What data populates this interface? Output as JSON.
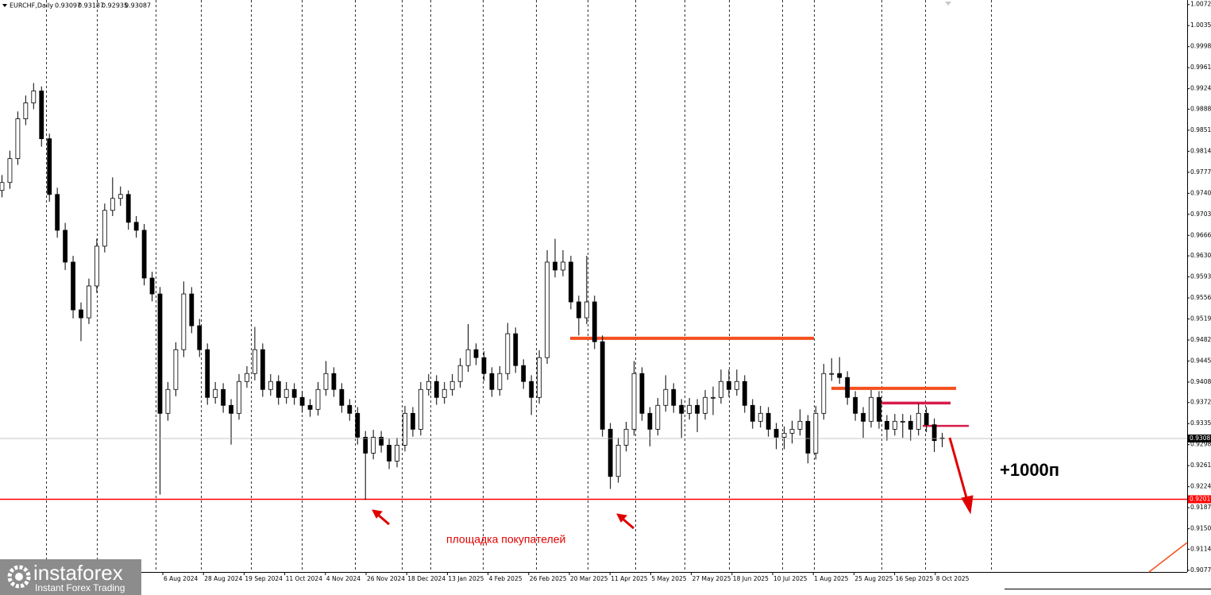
{
  "chart_data": {
    "type": "candlestick",
    "symbol": "EURCHF,Daily",
    "up_color": "#ffffff",
    "down_color": "#000000",
    "ylim": [
      0.9074,
      1.008
    ],
    "yticks": [
      {
        "value": 1.0072,
        "label": "1.00720"
      },
      {
        "value": 1.0035,
        "label": "1.00350"
      },
      {
        "value": 0.9998,
        "label": "0.99980"
      },
      {
        "value": 0.9961,
        "label": "0.99610"
      },
      {
        "value": 0.9924,
        "label": "0.99240"
      },
      {
        "value": 0.9888,
        "label": "0.98880"
      },
      {
        "value": 0.9851,
        "label": "0.98510"
      },
      {
        "value": 0.9814,
        "label": "0.98140"
      },
      {
        "value": 0.9777,
        "label": "0.97770"
      },
      {
        "value": 0.974,
        "label": "0.97400"
      },
      {
        "value": 0.9703,
        "label": "0.97030"
      },
      {
        "value": 0.9666,
        "label": "0.96660"
      },
      {
        "value": 0.963,
        "label": "0.96300"
      },
      {
        "value": 0.9593,
        "label": "0.95930"
      },
      {
        "value": 0.9556,
        "label": "0.95560"
      },
      {
        "value": 0.9519,
        "label": "0.95190"
      },
      {
        "value": 0.9482,
        "label": "0.94820"
      },
      {
        "value": 0.9445,
        "label": "0.94450"
      },
      {
        "value": 0.9408,
        "label": "0.94080"
      },
      {
        "value": 0.9372,
        "label": "0.93720"
      },
      {
        "value": 0.9335,
        "label": "0.93350"
      },
      {
        "value": 0.9298,
        "label": "0.92980"
      },
      {
        "value": 0.9261,
        "label": "0.92610"
      },
      {
        "value": 0.9224,
        "label": "0.92240"
      },
      {
        "value": 0.9187,
        "label": "0.91870"
      },
      {
        "value": 0.915,
        "label": "0.91500"
      },
      {
        "value": 0.9114,
        "label": "0.91140"
      },
      {
        "value": 0.9077,
        "label": "0.90770"
      }
    ],
    "x_labels": [
      "6 Aug 2024",
      "28 Aug 2024",
      "19 Sep 2024",
      "11 Oct 2024",
      "4 Nov 2024",
      "26 Nov 2024",
      "18 Dec 2024",
      "13 Jan 2025",
      "4 Feb 2025",
      "26 Feb 2025",
      "20 Mar 2025",
      "11 Apr 2025",
      "5 May 2025",
      "27 May 2025",
      "18 Jun 2025",
      "10 Jul 2025",
      "1 Aug 2025",
      "25 Aug 2025",
      "16 Sep 2025",
      "8 Oct 2025"
    ],
    "candles": [
      [
        0.9745,
        0.9772,
        0.9733,
        0.9759
      ],
      [
        0.9759,
        0.9815,
        0.9748,
        0.9801
      ],
      [
        0.9801,
        0.9884,
        0.979,
        0.9871
      ],
      [
        0.9871,
        0.9912,
        0.986,
        0.9899
      ],
      [
        0.9899,
        0.9934,
        0.9888,
        0.992
      ],
      [
        0.992,
        0.9928,
        0.9822,
        0.9836
      ],
      [
        0.9836,
        0.9845,
        0.9725,
        0.9738
      ],
      [
        0.9738,
        0.975,
        0.9662,
        0.9675
      ],
      [
        0.9675,
        0.9688,
        0.9605,
        0.9619
      ],
      [
        0.9619,
        0.963,
        0.952,
        0.9535
      ],
      [
        0.9535,
        0.9548,
        0.948,
        0.9521
      ],
      [
        0.9521,
        0.959,
        0.951,
        0.9577
      ],
      [
        0.9577,
        0.966,
        0.9565,
        0.9647
      ],
      [
        0.9647,
        0.9722,
        0.9636,
        0.971
      ],
      [
        0.971,
        0.9768,
        0.97,
        0.9731
      ],
      [
        0.9731,
        0.9752,
        0.9718,
        0.9738
      ],
      [
        0.9738,
        0.9745,
        0.9676,
        0.9689
      ],
      [
        0.9689,
        0.97,
        0.9662,
        0.9675
      ],
      [
        0.9675,
        0.9686,
        0.9578,
        0.9591
      ],
      [
        0.9591,
        0.9602,
        0.955,
        0.9563
      ],
      [
        0.9563,
        0.9575,
        0.921,
        0.9353
      ],
      [
        0.9353,
        0.9408,
        0.934,
        0.9395
      ],
      [
        0.9395,
        0.9478,
        0.9383,
        0.9465
      ],
      [
        0.9465,
        0.9585,
        0.9452,
        0.9563
      ],
      [
        0.9563,
        0.9575,
        0.9494,
        0.9507
      ],
      [
        0.9507,
        0.9519,
        0.9452,
        0.9465
      ],
      [
        0.9465,
        0.9476,
        0.9368,
        0.9381
      ],
      [
        0.9381,
        0.9408,
        0.937,
        0.9395
      ],
      [
        0.9395,
        0.9406,
        0.9354,
        0.9367
      ],
      [
        0.9367,
        0.9378,
        0.9298,
        0.9353
      ],
      [
        0.9353,
        0.9422,
        0.9342,
        0.9409
      ],
      [
        0.9409,
        0.9436,
        0.9398,
        0.9423
      ],
      [
        0.9423,
        0.9505,
        0.9411,
        0.9465
      ],
      [
        0.9465,
        0.9476,
        0.9382,
        0.9395
      ],
      [
        0.9395,
        0.9422,
        0.9384,
        0.9409
      ],
      [
        0.9409,
        0.942,
        0.9368,
        0.9381
      ],
      [
        0.9381,
        0.9408,
        0.937,
        0.9395
      ],
      [
        0.9395,
        0.9406,
        0.9368,
        0.9381
      ],
      [
        0.9381,
        0.9392,
        0.9354,
        0.9367
      ],
      [
        0.9367,
        0.9378,
        0.9347,
        0.936
      ],
      [
        0.936,
        0.9408,
        0.9349,
        0.9395
      ],
      [
        0.9395,
        0.9445,
        0.9384,
        0.9423
      ],
      [
        0.9423,
        0.9434,
        0.9382,
        0.9395
      ],
      [
        0.9395,
        0.9406,
        0.9354,
        0.9367
      ],
      [
        0.9367,
        0.9378,
        0.934,
        0.9353
      ],
      [
        0.9353,
        0.9364,
        0.9298,
        0.9311
      ],
      [
        0.9311,
        0.9322,
        0.9201,
        0.9283
      ],
      [
        0.9283,
        0.9324,
        0.9272,
        0.9311
      ],
      [
        0.9311,
        0.9322,
        0.9284,
        0.9297
      ],
      [
        0.9297,
        0.9308,
        0.9255,
        0.9269
      ],
      [
        0.9269,
        0.931,
        0.9258,
        0.9297
      ],
      [
        0.9297,
        0.9366,
        0.9286,
        0.9353
      ],
      [
        0.9353,
        0.9364,
        0.9312,
        0.9325
      ],
      [
        0.9325,
        0.9408,
        0.9314,
        0.9395
      ],
      [
        0.9395,
        0.9422,
        0.9384,
        0.9409
      ],
      [
        0.9409,
        0.942,
        0.9368,
        0.9381
      ],
      [
        0.9381,
        0.9408,
        0.937,
        0.9395
      ],
      [
        0.9395,
        0.9422,
        0.9384,
        0.9409
      ],
      [
        0.9409,
        0.945,
        0.9398,
        0.9437
      ],
      [
        0.9437,
        0.951,
        0.9426,
        0.9465
      ],
      [
        0.9465,
        0.9476,
        0.9438,
        0.9451
      ],
      [
        0.9451,
        0.9462,
        0.941,
        0.9423
      ],
      [
        0.9423,
        0.9434,
        0.9382,
        0.9395
      ],
      [
        0.9395,
        0.9436,
        0.9384,
        0.9423
      ],
      [
        0.9423,
        0.9512,
        0.9412,
        0.9493
      ],
      [
        0.9493,
        0.9504,
        0.9424,
        0.9437
      ],
      [
        0.9437,
        0.9448,
        0.9396,
        0.9409
      ],
      [
        0.9409,
        0.942,
        0.935,
        0.9381
      ],
      [
        0.9381,
        0.9464,
        0.937,
        0.9451
      ],
      [
        0.9451,
        0.964,
        0.944,
        0.9619
      ],
      [
        0.9619,
        0.966,
        0.9592,
        0.9605
      ],
      [
        0.9605,
        0.964,
        0.9594,
        0.9619
      ],
      [
        0.9619,
        0.963,
        0.9536,
        0.9549
      ],
      [
        0.9549,
        0.956,
        0.949,
        0.9521
      ],
      [
        0.9521,
        0.963,
        0.951,
        0.9549
      ],
      [
        0.9549,
        0.956,
        0.9466,
        0.9479
      ],
      [
        0.9479,
        0.949,
        0.9312,
        0.9325
      ],
      [
        0.9325,
        0.9336,
        0.922,
        0.9242
      ],
      [
        0.9242,
        0.931,
        0.9231,
        0.9297
      ],
      [
        0.9297,
        0.9338,
        0.9286,
        0.9325
      ],
      [
        0.9325,
        0.9445,
        0.9314,
        0.9423
      ],
      [
        0.9423,
        0.9434,
        0.934,
        0.9353
      ],
      [
        0.9353,
        0.9364,
        0.9295,
        0.9325
      ],
      [
        0.9325,
        0.938,
        0.9314,
        0.9367
      ],
      [
        0.9367,
        0.942,
        0.9356,
        0.9395
      ],
      [
        0.9395,
        0.9406,
        0.9354,
        0.9367
      ],
      [
        0.9367,
        0.9378,
        0.931,
        0.9353
      ],
      [
        0.9353,
        0.938,
        0.9342,
        0.9367
      ],
      [
        0.9367,
        0.9378,
        0.932,
        0.9353
      ],
      [
        0.9353,
        0.9394,
        0.9342,
        0.9381
      ],
      [
        0.9381,
        0.94,
        0.935,
        0.9381
      ],
      [
        0.9381,
        0.943,
        0.937,
        0.9409
      ],
      [
        0.9409,
        0.943,
        0.9382,
        0.9395
      ],
      [
        0.9395,
        0.943,
        0.9384,
        0.9409
      ],
      [
        0.9409,
        0.942,
        0.9354,
        0.9367
      ],
      [
        0.9367,
        0.9378,
        0.9326,
        0.9339
      ],
      [
        0.9339,
        0.9366,
        0.9328,
        0.9353
      ],
      [
        0.9353,
        0.9364,
        0.9312,
        0.9325
      ],
      [
        0.9325,
        0.9336,
        0.929,
        0.9311
      ],
      [
        0.9311,
        0.933,
        0.929,
        0.9318
      ],
      [
        0.9318,
        0.934,
        0.93,
        0.9325
      ],
      [
        0.9325,
        0.936,
        0.9314,
        0.9339
      ],
      [
        0.9339,
        0.935,
        0.9265,
        0.9283
      ],
      [
        0.9283,
        0.9366,
        0.9272,
        0.9353
      ],
      [
        0.9353,
        0.944,
        0.9342,
        0.9423
      ],
      [
        0.9423,
        0.945,
        0.941,
        0.9423
      ],
      [
        0.9423,
        0.9452,
        0.9405,
        0.9416
      ],
      [
        0.9416,
        0.9427,
        0.9368,
        0.9381
      ],
      [
        0.9381,
        0.9392,
        0.934,
        0.9353
      ],
      [
        0.9353,
        0.9364,
        0.931,
        0.9339
      ],
      [
        0.9339,
        0.9394,
        0.9328,
        0.9381
      ],
      [
        0.9381,
        0.9392,
        0.9326,
        0.9339
      ],
      [
        0.9339,
        0.935,
        0.9305,
        0.9325
      ],
      [
        0.9325,
        0.9352,
        0.9314,
        0.9339
      ],
      [
        0.9339,
        0.9352,
        0.931,
        0.9339
      ],
      [
        0.9339,
        0.935,
        0.9305,
        0.9325
      ],
      [
        0.9325,
        0.937,
        0.9314,
        0.9353
      ],
      [
        0.9353,
        0.9364,
        0.932,
        0.9333
      ],
      [
        0.9333,
        0.9344,
        0.9285,
        0.9305
      ],
      [
        0.93097,
        0.93187,
        0.92935,
        0.93087
      ]
    ],
    "levels": [
      {
        "price": 0.92019,
        "color": "#ff0000"
      },
      {
        "price": 0.9485,
        "color": "#f4511e"
      },
      {
        "price": 0.9397,
        "color": "#f4511e"
      },
      {
        "price": 0.9371,
        "color": "#d81b4a"
      },
      {
        "price": 0.9331,
        "color": "#d81b4a"
      }
    ],
    "annotations": {
      "target": "+1000п",
      "zone": "площадка покупателей"
    },
    "logo": {
      "name": "instaforex",
      "tagline": "Instant Forex Trading"
    }
  }
}
